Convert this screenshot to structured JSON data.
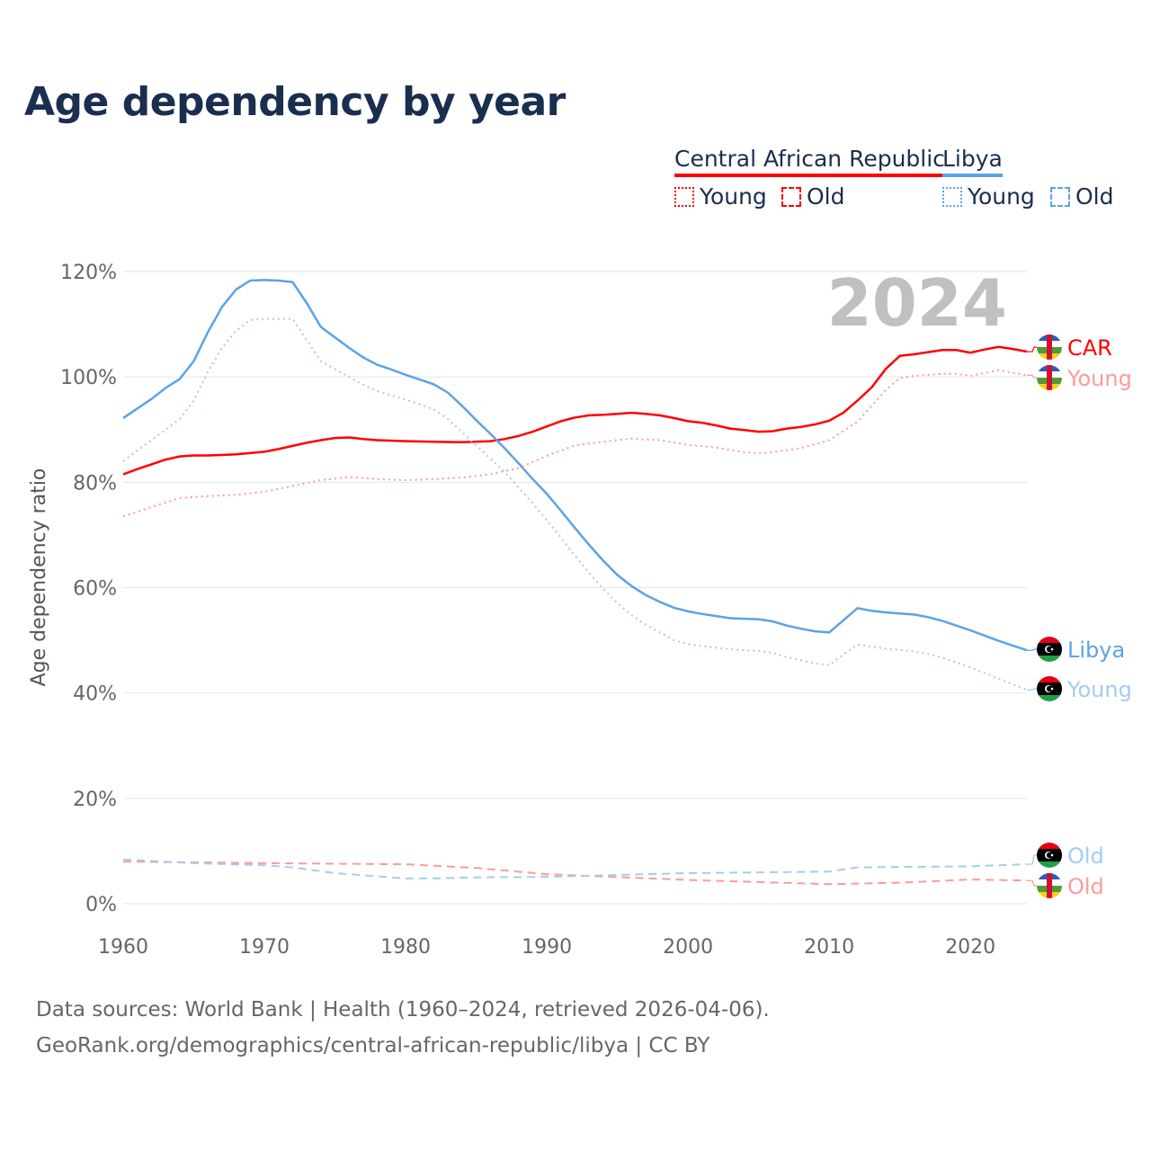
{
  "title": "Age dependency by year",
  "legend": {
    "countries": [
      {
        "name": "Central African Republic",
        "color": "#ff0000",
        "young_label": "Young",
        "old_label": "Old"
      },
      {
        "name": "Libya",
        "color": "#5ba3e8",
        "young_label": "Young",
        "old_label": "Old"
      }
    ]
  },
  "year_watermark": "2024",
  "end_labels": {
    "car": "CAR",
    "car_young": "Young",
    "car_old": "Old",
    "libya": "Libya",
    "libya_young": "Young",
    "libya_old": "Old"
  },
  "footer": {
    "line1": "Data sources: World Bank | Health (1960–2024, retrieved 2026-04-06).",
    "line2": "GeoRank.org/demographics/central-african-republic/libya | CC BY"
  },
  "chart_data": {
    "type": "line",
    "title": "Age dependency by year",
    "xlabel": "",
    "ylabel": "Age dependency ratio",
    "xlim": [
      1960,
      2024
    ],
    "ylim": [
      0,
      120
    ],
    "x_ticks": [
      "1960",
      "1970",
      "1980",
      "1990",
      "2000",
      "2010",
      "2020"
    ],
    "y_ticks": [
      "0%",
      "20%",
      "40%",
      "60%",
      "80%",
      "100%",
      "120%"
    ],
    "grid": true,
    "series": [
      {
        "name": "Central African Republic",
        "style": "solid",
        "color": "#ff0000",
        "points": [
          [
            1960,
            81.5
          ],
          [
            1961,
            82.5
          ],
          [
            1962,
            83.4
          ],
          [
            1963,
            84.3
          ],
          [
            1964,
            84.9
          ],
          [
            1965,
            85.1
          ],
          [
            1966,
            85.1
          ],
          [
            1968,
            85.3
          ],
          [
            1970,
            85.8
          ],
          [
            1971,
            86.3
          ],
          [
            1972,
            86.9
          ],
          [
            1973,
            87.5
          ],
          [
            1974,
            88
          ],
          [
            1975,
            88.4
          ],
          [
            1976,
            88.5
          ],
          [
            1977,
            88.2
          ],
          [
            1978,
            88
          ],
          [
            1980,
            87.8
          ],
          [
            1982,
            87.7
          ],
          [
            1984,
            87.6
          ],
          [
            1986,
            87.8
          ],
          [
            1987,
            88.2
          ],
          [
            1988,
            88.8
          ],
          [
            1989,
            89.6
          ],
          [
            1990,
            90.6
          ],
          [
            1991,
            91.6
          ],
          [
            1992,
            92.3
          ],
          [
            1993,
            92.7
          ],
          [
            1994,
            92.8
          ],
          [
            1995,
            93
          ],
          [
            1996,
            93.2
          ],
          [
            1997,
            93
          ],
          [
            1998,
            92.7
          ],
          [
            1999,
            92.2
          ],
          [
            2000,
            91.6
          ],
          [
            2001,
            91.3
          ],
          [
            2002,
            90.8
          ],
          [
            2003,
            90.2
          ],
          [
            2004,
            89.9
          ],
          [
            2005,
            89.6
          ],
          [
            2006,
            89.7
          ],
          [
            2007,
            90.2
          ],
          [
            2008,
            90.5
          ],
          [
            2009,
            91
          ],
          [
            2010,
            91.7
          ],
          [
            2011,
            93.2
          ],
          [
            2012,
            95.5
          ],
          [
            2013,
            98
          ],
          [
            2014,
            101.5
          ],
          [
            2015,
            104
          ],
          [
            2016,
            104.3
          ],
          [
            2017,
            104.7
          ],
          [
            2018,
            105.1
          ],
          [
            2019,
            105.1
          ],
          [
            2020,
            104.6
          ],
          [
            2021,
            105.2
          ],
          [
            2022,
            105.7
          ],
          [
            2023,
            105.3
          ],
          [
            2024,
            104.8
          ]
        ]
      },
      {
        "name": "Central African Republic Young",
        "style": "dotted",
        "color": "#ff9a9a",
        "points": [
          [
            1960,
            73.5
          ],
          [
            1962,
            75.3
          ],
          [
            1964,
            77
          ],
          [
            1966,
            77.4
          ],
          [
            1968,
            77.6
          ],
          [
            1970,
            78.2
          ],
          [
            1972,
            79.3
          ],
          [
            1974,
            80.4
          ],
          [
            1976,
            81
          ],
          [
            1978,
            80.6
          ],
          [
            1980,
            80.4
          ],
          [
            1982,
            80.6
          ],
          [
            1984,
            80.9
          ],
          [
            1986,
            81.5
          ],
          [
            1988,
            82.7
          ],
          [
            1990,
            85
          ],
          [
            1992,
            87
          ],
          [
            1994,
            87.7
          ],
          [
            1996,
            88.3
          ],
          [
            1998,
            88
          ],
          [
            2000,
            87.1
          ],
          [
            2002,
            86.6
          ],
          [
            2004,
            85.7
          ],
          [
            2005,
            85.5
          ],
          [
            2006,
            85.7
          ],
          [
            2008,
            86.5
          ],
          [
            2010,
            88
          ],
          [
            2012,
            91.5
          ],
          [
            2014,
            97.5
          ],
          [
            2015,
            99.8
          ],
          [
            2016,
            100.2
          ],
          [
            2018,
            100.6
          ],
          [
            2019,
            100.6
          ],
          [
            2020,
            100.2
          ],
          [
            2022,
            101.3
          ],
          [
            2024,
            100.3
          ]
        ]
      },
      {
        "name": "Central African Republic Old",
        "style": "dashed",
        "color": "#ff9a9a",
        "points": [
          [
            1960,
            8
          ],
          [
            1970,
            7.7
          ],
          [
            1980,
            7.5
          ],
          [
            1985,
            6.8
          ],
          [
            1990,
            5.6
          ],
          [
            2000,
            4.5
          ],
          [
            2010,
            3.7
          ],
          [
            2015,
            4
          ],
          [
            2020,
            4.6
          ],
          [
            2024,
            4.4
          ]
        ]
      },
      {
        "name": "Libya",
        "style": "solid",
        "color": "#5ba3e8",
        "points": [
          [
            1960,
            92.2
          ],
          [
            1962,
            95.8
          ],
          [
            1963,
            97.9
          ],
          [
            1964,
            99.6
          ],
          [
            1965,
            103
          ],
          [
            1966,
            108.5
          ],
          [
            1967,
            113.3
          ],
          [
            1968,
            116.6
          ],
          [
            1969,
            118.3
          ],
          [
            1970,
            118.4
          ],
          [
            1971,
            118.3
          ],
          [
            1972,
            118
          ],
          [
            1973,
            114
          ],
          [
            1974,
            109.5
          ],
          [
            1975,
            107.5
          ],
          [
            1976,
            105.5
          ],
          [
            1977,
            103.7
          ],
          [
            1978,
            102.3
          ],
          [
            1979,
            101.4
          ],
          [
            1980,
            100.4
          ],
          [
            1981,
            99.5
          ],
          [
            1982,
            98.6
          ],
          [
            1983,
            97
          ],
          [
            1984,
            94.5
          ],
          [
            1985,
            91.8
          ],
          [
            1986,
            89.2
          ],
          [
            1987,
            86.5
          ],
          [
            1988,
            83.6
          ],
          [
            1989,
            80.6
          ],
          [
            1990,
            77.8
          ],
          [
            1991,
            74.6
          ],
          [
            1992,
            71.3
          ],
          [
            1993,
            68.1
          ],
          [
            1994,
            65.1
          ],
          [
            1995,
            62.4
          ],
          [
            1996,
            60.3
          ],
          [
            1997,
            58.6
          ],
          [
            1998,
            57.3
          ],
          [
            1999,
            56.2
          ],
          [
            2000,
            55.5
          ],
          [
            2001,
            55
          ],
          [
            2002,
            54.6
          ],
          [
            2003,
            54.2
          ],
          [
            2004,
            54.1
          ],
          [
            2005,
            54
          ],
          [
            2006,
            53.6
          ],
          [
            2007,
            52.8
          ],
          [
            2008,
            52.2
          ],
          [
            2009,
            51.7
          ],
          [
            2010,
            51.5
          ],
          [
            2011,
            53.8
          ],
          [
            2012,
            56.1
          ],
          [
            2013,
            55.6
          ],
          [
            2014,
            55.3
          ],
          [
            2015,
            55.1
          ],
          [
            2016,
            54.9
          ],
          [
            2017,
            54.4
          ],
          [
            2018,
            53.7
          ],
          [
            2019,
            52.8
          ],
          [
            2020,
            51.9
          ],
          [
            2021,
            50.9
          ],
          [
            2022,
            49.9
          ],
          [
            2023,
            49
          ],
          [
            2024,
            48.1
          ]
        ]
      },
      {
        "name": "Libya Young",
        "style": "dotted",
        "color": "#a6cbf0",
        "points": [
          [
            1960,
            84
          ],
          [
            1962,
            88
          ],
          [
            1964,
            92
          ],
          [
            1965,
            95.5
          ],
          [
            1966,
            101
          ],
          [
            1967,
            105.5
          ],
          [
            1968,
            108.8
          ],
          [
            1969,
            110.8
          ],
          [
            1970,
            111
          ],
          [
            1972,
            111
          ],
          [
            1973,
            107
          ],
          [
            1974,
            103
          ],
          [
            1975,
            101.5
          ],
          [
            1976,
            100
          ],
          [
            1977,
            98.5
          ],
          [
            1978,
            97.3
          ],
          [
            1979,
            96.5
          ],
          [
            1980,
            95.7
          ],
          [
            1981,
            94.8
          ],
          [
            1982,
            93.8
          ],
          [
            1983,
            92
          ],
          [
            1984,
            89.5
          ],
          [
            1985,
            87
          ],
          [
            1986,
            84.5
          ],
          [
            1987,
            82
          ],
          [
            1988,
            79
          ],
          [
            1989,
            76
          ],
          [
            1990,
            72.8
          ],
          [
            1991,
            69.5
          ],
          [
            1992,
            66
          ],
          [
            1993,
            62.8
          ],
          [
            1994,
            59.8
          ],
          [
            1995,
            57
          ],
          [
            1996,
            54.8
          ],
          [
            1997,
            53
          ],
          [
            1998,
            51.5
          ],
          [
            1999,
            50
          ],
          [
            2000,
            49.3
          ],
          [
            2001,
            48.9
          ],
          [
            2002,
            48.6
          ],
          [
            2003,
            48.3
          ],
          [
            2004,
            48.1
          ],
          [
            2005,
            48
          ],
          [
            2006,
            47.6
          ],
          [
            2007,
            46.8
          ],
          [
            2008,
            46.2
          ],
          [
            2009,
            45.6
          ],
          [
            2010,
            45.3
          ],
          [
            2011,
            47.3
          ],
          [
            2012,
            49.2
          ],
          [
            2013,
            48.8
          ],
          [
            2014,
            48.4
          ],
          [
            2015,
            48.2
          ],
          [
            2016,
            47.9
          ],
          [
            2017,
            47.4
          ],
          [
            2018,
            46.7
          ],
          [
            2019,
            45.8
          ],
          [
            2020,
            44.8
          ],
          [
            2021,
            43.8
          ],
          [
            2022,
            42.7
          ],
          [
            2023,
            41.6
          ],
          [
            2024,
            40.6
          ]
        ]
      },
      {
        "name": "Libya Old",
        "style": "dashed",
        "color": "#a6cbf0",
        "points": [
          [
            1960,
            8.4
          ],
          [
            1965,
            7.7
          ],
          [
            1970,
            7.3
          ],
          [
            1972,
            6.9
          ],
          [
            1975,
            5.8
          ],
          [
            1980,
            4.8
          ],
          [
            1982,
            4.8
          ],
          [
            1985,
            5
          ],
          [
            1990,
            5.1
          ],
          [
            2000,
            5.8
          ],
          [
            2010,
            6.1
          ],
          [
            2012,
            6.9
          ],
          [
            2020,
            7.1
          ],
          [
            2024,
            7.5
          ]
        ]
      }
    ]
  }
}
